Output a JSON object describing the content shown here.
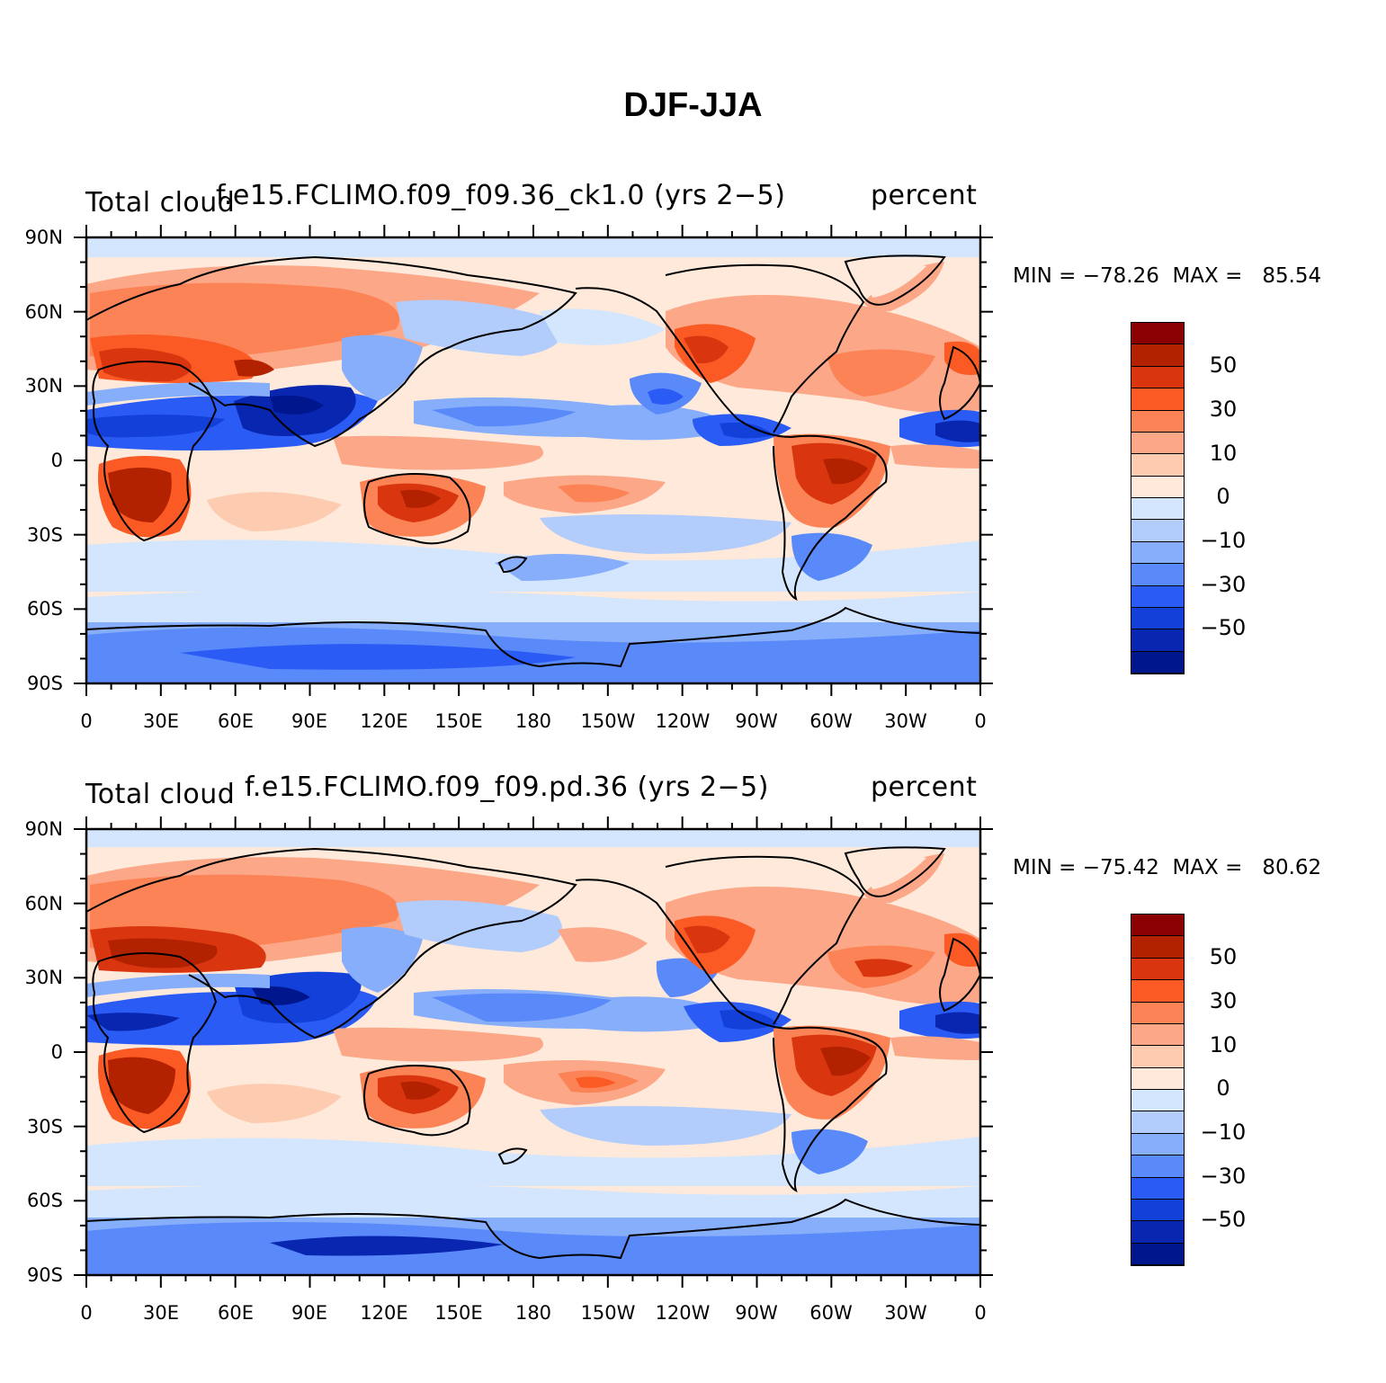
{
  "title": "DJF-JJA",
  "panels": [
    {
      "left_label": "Total cloud",
      "center_label": "f.e15.FCLIMO.f09_f09.36_ck1.0 (yrs 2−5)",
      "right_label": "percent",
      "min_max_text": "MIN = −78.26  MAX =   85.54"
    },
    {
      "left_label": "Total cloud",
      "center_label": "f.e15.FCLIMO.f09_f09.pd.36 (yrs 2−5)",
      "right_label": "percent",
      "min_max_text": "MIN = −75.42  MAX =   80.62"
    }
  ],
  "lat_labels": [
    "90N",
    "60N",
    "30N",
    "0",
    "30S",
    "60S",
    "90S"
  ],
  "lon_labels": [
    "0",
    "30E",
    "60E",
    "90E",
    "120E",
    "150E",
    "180",
    "150W",
    "120W",
    "90W",
    "60W",
    "30W",
    "0"
  ],
  "colorbar": {
    "colors": [
      "#8b0000",
      "#b22200",
      "#d9360f",
      "#fb5a25",
      "#fb8356",
      "#fca787",
      "#fdcbb0",
      "#fee9da",
      "#d4e6fd",
      "#b2cdfb",
      "#87aefa",
      "#5a8afa",
      "#2a5cf5",
      "#1240d8",
      "#0826b0",
      "#00168c"
    ],
    "labels": [
      "50",
      "30",
      "10",
      "0",
      "−10",
      "−30",
      "−50"
    ]
  }
}
